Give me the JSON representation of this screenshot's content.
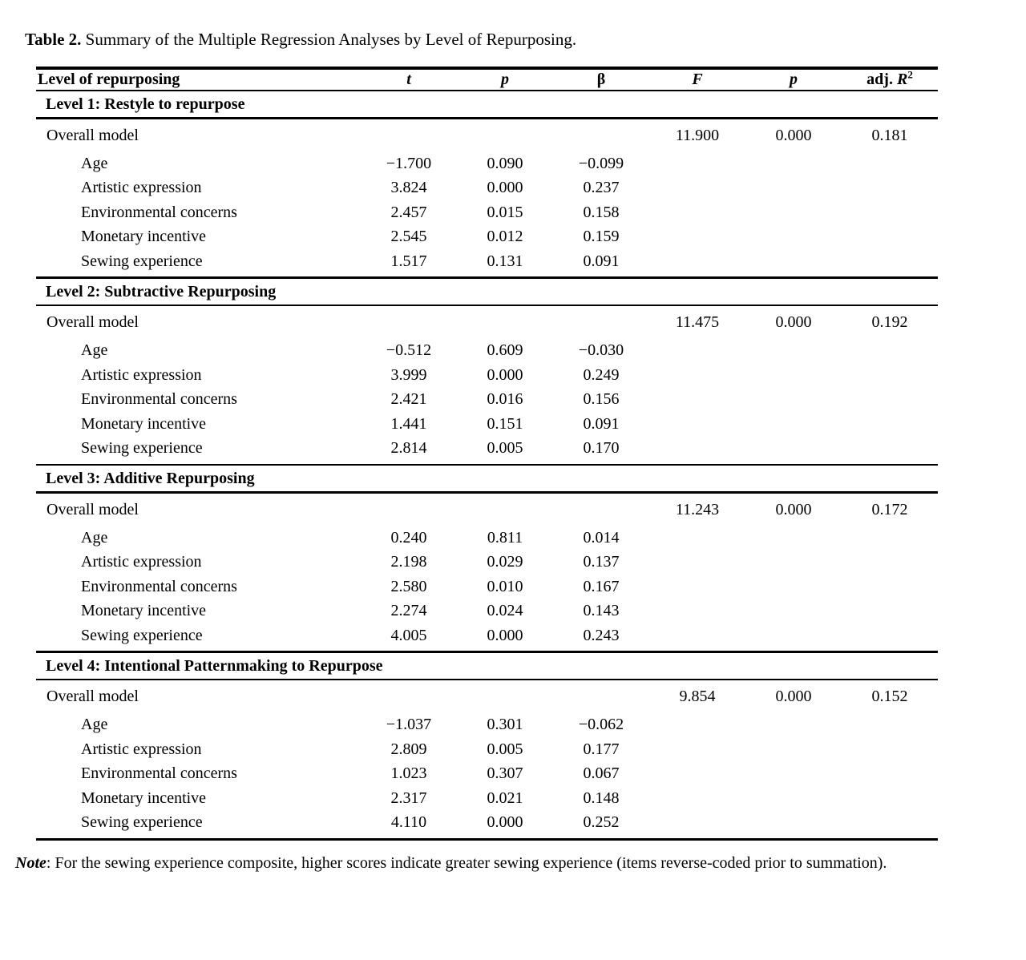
{
  "title": {
    "label": "Table 2.",
    "text": " Summary of the Multiple Regression Analyses by Level of Repurposing."
  },
  "table": {
    "header": {
      "level": "Level of repurposing",
      "t": "t",
      "p": "p",
      "beta": "β",
      "F": "F",
      "p2": "p",
      "adj_prefix": "adj. ",
      "adj_r": "R",
      "adj_sup": "2"
    },
    "sections": [
      {
        "title": "Level 1: Restyle to repurpose",
        "overall": {
          "label": "Overall model",
          "F": "11.900",
          "p": "0.000",
          "adj_r2": "0.181"
        },
        "predictors": [
          {
            "label": "Age",
            "t": "−1.700",
            "p": "0.090",
            "beta": "−0.099"
          },
          {
            "label": "Artistic expression",
            "t": "3.824",
            "p": "0.000",
            "beta": "0.237"
          },
          {
            "label": "Environmental concerns",
            "t": "2.457",
            "p": "0.015",
            "beta": "0.158"
          },
          {
            "label": "Monetary incentive",
            "t": "2.545",
            "p": "0.012",
            "beta": "0.159"
          },
          {
            "label": "Sewing experience",
            "t": "1.517",
            "p": "0.131",
            "beta": "0.091"
          }
        ]
      },
      {
        "title": "Level 2: Subtractive Repurposing",
        "overall": {
          "label": "Overall model",
          "F": "11.475",
          "p": "0.000",
          "adj_r2": "0.192"
        },
        "predictors": [
          {
            "label": "Age",
            "t": "−0.512",
            "p": "0.609",
            "beta": "−0.030"
          },
          {
            "label": "Artistic expression",
            "t": "3.999",
            "p": "0.000",
            "beta": "0.249"
          },
          {
            "label": "Environmental concerns",
            "t": "2.421",
            "p": "0.016",
            "beta": "0.156"
          },
          {
            "label": "Monetary incentive",
            "t": "1.441",
            "p": "0.151",
            "beta": "0.091"
          },
          {
            "label": "Sewing experience",
            "t": "2.814",
            "p": "0.005",
            "beta": "0.170"
          }
        ]
      },
      {
        "title": "Level 3: Additive Repurposing",
        "overall": {
          "label": "Overall model",
          "F": "11.243",
          "p": "0.000",
          "adj_r2": "0.172"
        },
        "predictors": [
          {
            "label": "Age",
            "t": "0.240",
            "p": "0.811",
            "beta": "0.014"
          },
          {
            "label": "Artistic expression",
            "t": "2.198",
            "p": "0.029",
            "beta": "0.137"
          },
          {
            "label": "Environmental concerns",
            "t": "2.580",
            "p": "0.010",
            "beta": "0.167"
          },
          {
            "label": "Monetary incentive",
            "t": "2.274",
            "p": "0.024",
            "beta": "0.143"
          },
          {
            "label": "Sewing experience",
            "t": "4.005",
            "p": "0.000",
            "beta": "0.243"
          }
        ]
      },
      {
        "title": "Level 4: Intentional Patternmaking to Repurpose",
        "overall": {
          "label": "Overall model",
          "F": "9.854",
          "p": "0.000",
          "adj_r2": "0.152"
        },
        "predictors": [
          {
            "label": "Age",
            "t": "−1.037",
            "p": "0.301",
            "beta": "−0.062"
          },
          {
            "label": "Artistic expression",
            "t": "2.809",
            "p": "0.005",
            "beta": "0.177"
          },
          {
            "label": "Environmental concerns",
            "t": "1.023",
            "p": "0.307",
            "beta": "0.067"
          },
          {
            "label": "Monetary incentive",
            "t": "2.317",
            "p": "0.021",
            "beta": "0.148"
          },
          {
            "label": "Sewing experience",
            "t": "4.110",
            "p": "0.000",
            "beta": "0.252"
          }
        ]
      }
    ]
  },
  "note": {
    "label": "Note",
    "text": ": For the sewing experience composite, higher scores indicate greater sewing experience (items reverse-coded prior to summation)."
  }
}
